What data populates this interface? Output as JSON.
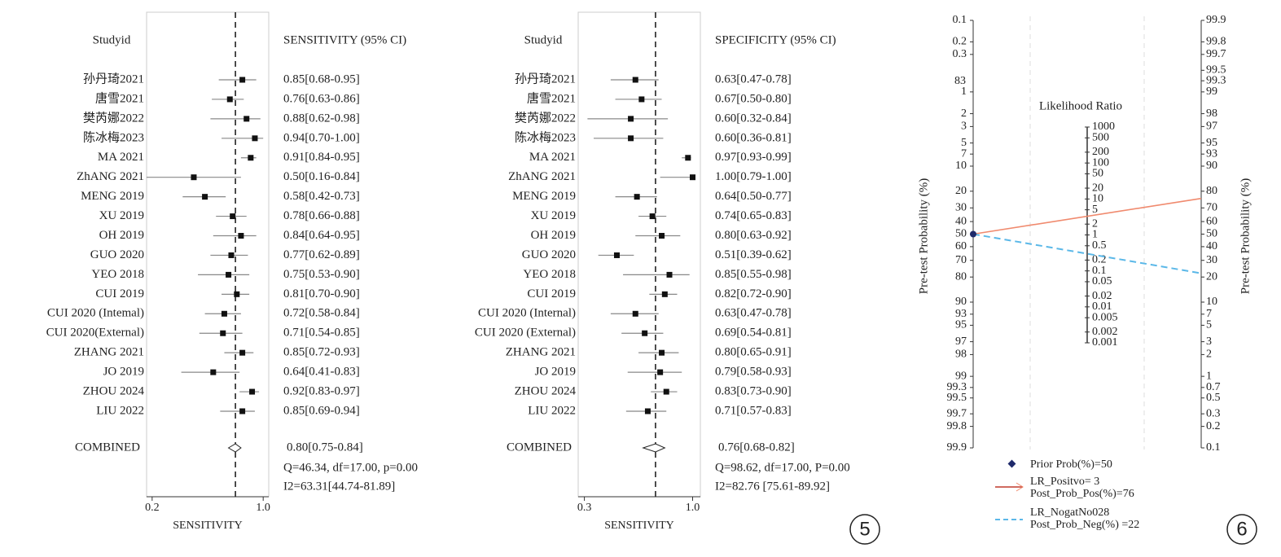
{
  "chart_data": [
    {
      "type": "forest",
      "column_header": "Studyid",
      "estimate_header": "SENSITIVITY (95% CI)",
      "categories": [
        "孙丹琦2021",
        "唐雪2021",
        "樊芮娜2022",
        "陈冰梅2023",
        "MA 2021",
        "ZhANG 2021",
        "MENG 2019",
        "XU 2019",
        "OH 2019",
        "GUO 2020",
        "YEO 2018",
        "CUI 2019",
        "CUI 2020 (Intemal)",
        "CUI 2020(External)",
        "ZHANG 2021",
        "JO 2019",
        "ZHOU 2024",
        "LIU 2022"
      ],
      "values": [
        0.85,
        0.76,
        0.88,
        0.94,
        0.91,
        0.5,
        0.58,
        0.78,
        0.84,
        0.77,
        0.75,
        0.81,
        0.72,
        0.71,
        0.85,
        0.64,
        0.92,
        0.85
      ],
      "lower": [
        0.68,
        0.63,
        0.62,
        0.7,
        0.84,
        0.16,
        0.42,
        0.66,
        0.64,
        0.62,
        0.53,
        0.7,
        0.58,
        0.54,
        0.72,
        0.41,
        0.83,
        0.69
      ],
      "upper": [
        0.95,
        0.86,
        0.98,
        1,
        0.95,
        0.84,
        0.73,
        0.88,
        0.95,
        0.89,
        0.9,
        0.9,
        0.84,
        0.85,
        0.93,
        0.83,
        0.97,
        0.94
      ],
      "value_labels": [
        "0.85[0.68-0.95]",
        "0.76[0.63-0.86]",
        "0.88[0.62-0.98]",
        "0.94[0.70-1.00]",
        "0.91[0.84-0.95]",
        "0.50[0.16-0.84]",
        "0.58[0.42-0.73]",
        "0.78[0.66-0.88]",
        "0.84[0.64-0.95]",
        "0.77[0.62-0.89]",
        "0.75[0.53-0.90]",
        "0.81[0.70-0.90]",
        "0.72[0.58-0.84]",
        "0.71[0.54-0.85]",
        "0.85[0.72-0.93]",
        "0.64[0.41-0.83]",
        "0.92[0.83-0.97]",
        "0.85[0.69-0.94]"
      ],
      "combined": {
        "label": "COMBINED",
        "value": 0.8,
        "lower": 0.75,
        "upper": 0.84,
        "value_label": "0.80[0.75-0.84]"
      },
      "stats": [
        "Q=46.34, df=17.00, p=0.00",
        "I2=63.31[44.74-81.89]"
      ],
      "xlabel": "SENSITIVITY",
      "xlim": [
        0.16,
        1.04
      ],
      "xticks": [
        0.2,
        {
          "value": 1,
          "label": "1.0"
        }
      ]
    },
    {
      "type": "forest",
      "column_header": "Studyid",
      "estimate_header": "SPECIFICITY (95% CI)",
      "categories": [
        "孙丹琦2021",
        "唐雪2021",
        "樊芮娜2022",
        "陈冰梅2023",
        "MA 2021",
        "ZhANG 2021",
        "MENG 2019",
        "XU 2019",
        "OH 2019",
        "GUO 2020",
        "YEO 2018",
        "CUI 2019",
        "CUI 2020 (Internal)",
        "CUI 2020 (External)",
        "ZHANG 2021",
        "JO 2019",
        "ZHOU 2024",
        "LIU 2022"
      ],
      "values": [
        0.63,
        0.67,
        0.6,
        0.6,
        0.97,
        1,
        0.64,
        0.74,
        0.8,
        0.51,
        0.85,
        0.82,
        0.63,
        0.69,
        0.8,
        0.79,
        0.83,
        0.71
      ],
      "lower": [
        0.47,
        0.5,
        0.32,
        0.36,
        0.93,
        0.79,
        0.5,
        0.65,
        0.63,
        0.39,
        0.55,
        0.72,
        0.47,
        0.54,
        0.65,
        0.58,
        0.73,
        0.57
      ],
      "upper": [
        0.78,
        0.8,
        0.84,
        0.81,
        0.99,
        1,
        0.77,
        0.83,
        0.92,
        0.62,
        0.98,
        0.9,
        0.78,
        0.81,
        0.91,
        0.93,
        0.9,
        0.83
      ],
      "value_labels": [
        "0.63[0.47-0.78]",
        "0.67[0.50-0.80]",
        "0.60[0.32-0.84]",
        "0.60[0.36-0.81]",
        "0.97[0.93-0.99]",
        "1.00[0.79-1.00]",
        "0.64[0.50-0.77]",
        "0.74[0.65-0.83]",
        "0.80[0.63-0.92]",
        "0.51[0.39-0.62]",
        "0.85[0.55-0.98]",
        "0.82[0.72-0.90]",
        "0.63[0.47-0.78]",
        "0.69[0.54-0.81]",
        "0.80[0.65-0.91]",
        "0.79[0.58-0.93]",
        "0.83[0.73-0.90]",
        "0.71[0.57-0.83]"
      ],
      "combined": {
        "label": "COMBINED",
        "value": 0.76,
        "lower": 0.68,
        "upper": 0.82,
        "value_label": "0.76[0.68-0.82]"
      },
      "stats": [
        "Q=98.62, df=17.00, P=0.00",
        "I2=82.76 [75.61-89.92]"
      ],
      "xlabel": "SENSITIVITY",
      "xlim": [
        0.26,
        1.05
      ],
      "xticks": [
        0.3,
        {
          "value": 1,
          "label": "1.0"
        }
      ],
      "annotation": "5"
    },
    {
      "type": "fagan",
      "ylabel": "Pre-test Probability (%)",
      "y2label": "Pre-test Probability (%)",
      "lr_label": "Likelihood Ratio",
      "ylim": [
        0.1,
        99.9
      ],
      "yticks": [
        0.1,
        0.2,
        0.3,
        1,
        2,
        3,
        5,
        7,
        10,
        20,
        30,
        40,
        50,
        60,
        70,
        80,
        90,
        93,
        95,
        97,
        98,
        99,
        99.3,
        99.5,
        99.7,
        99.8,
        99.9
      ],
      "y2lim": [
        99.9,
        0.1
      ],
      "y2ticks": [
        99.9,
        99.8,
        99.7,
        99.5,
        99.3,
        99,
        98,
        97,
        95,
        93,
        90,
        80,
        70,
        60,
        50,
        40,
        30,
        20,
        10,
        7,
        5,
        3,
        2,
        1,
        0.7,
        0.5,
        0.3,
        0.2,
        0.1
      ],
      "lrlim": [
        1000,
        0.001
      ],
      "lrticks": [
        1000,
        500,
        200,
        100,
        50,
        20,
        10,
        5,
        2,
        1,
        0.5,
        0.2,
        0.1,
        0.05,
        0.02,
        0.01,
        0.005,
        0.002,
        0.001
      ],
      "prior": 50,
      "lr_pos": 3,
      "post_pos": 76,
      "lr_neg": 0.28,
      "post_neg": 22,
      "legend": [
        "Prior Prob(%)=50",
        "LR_Positvo= 3",
        "Post_Prob_Pos(%)=76",
        "LR_NogatNo028",
        "Post_Prob_Neg(%) =22"
      ],
      "colors": {
        "prior": "#1f2a6b",
        "positive": "#f08a6e",
        "negative": "#5bb8e8"
      },
      "stray_label": "83",
      "annotation": "6"
    }
  ]
}
